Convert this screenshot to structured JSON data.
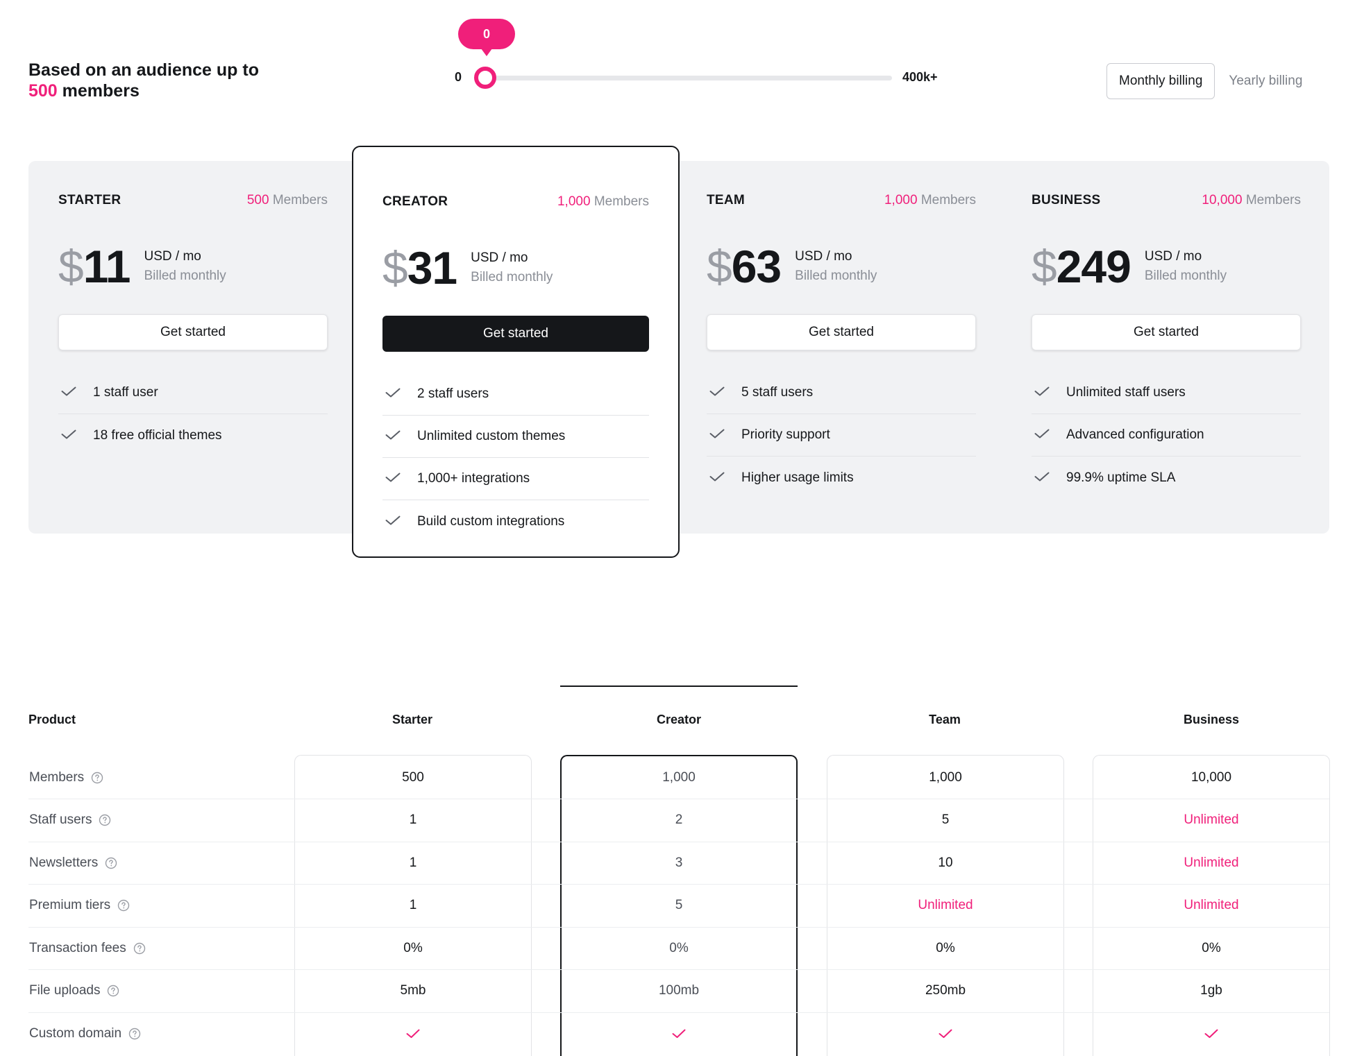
{
  "audience": {
    "prefix": "Based on an audience up to",
    "count": "500",
    "suffix": "members"
  },
  "slider": {
    "bubble": "0",
    "min_label": "0",
    "max_label": "400k+",
    "value_fraction": 0
  },
  "billing": {
    "monthly": "Monthly billing",
    "yearly": "Yearly billing"
  },
  "plans": [
    {
      "name": "STARTER",
      "members_count": "500",
      "members_label": "Members",
      "currency": "$",
      "price": "11",
      "unit": "USD / mo",
      "billed": "Billed monthly",
      "cta": "Get started",
      "features": [
        "1 staff user",
        "18 free official themes"
      ]
    },
    {
      "name": "CREATOR",
      "members_count": "1,000",
      "members_label": "Members",
      "currency": "$",
      "price": "31",
      "unit": "USD / mo",
      "billed": "Billed monthly",
      "cta": "Get started",
      "features": [
        "2 staff users",
        "Unlimited custom themes",
        "1,000+ integrations",
        "Build custom integrations"
      ]
    },
    {
      "name": "TEAM",
      "members_count": "1,000",
      "members_label": "Members",
      "currency": "$",
      "price": "63",
      "unit": "USD / mo",
      "billed": "Billed monthly",
      "cta": "Get started",
      "features": [
        "5 staff users",
        "Priority support",
        "Higher usage limits"
      ]
    },
    {
      "name": "BUSINESS",
      "members_count": "10,000",
      "members_label": "Members",
      "currency": "$",
      "price": "249",
      "unit": "USD / mo",
      "billed": "Billed monthly",
      "cta": "Get started",
      "features": [
        "Unlimited staff users",
        "Advanced configuration",
        "99.9% uptime SLA"
      ]
    }
  ],
  "table": {
    "headers": [
      "Product",
      "Starter",
      "Creator",
      "Team",
      "Business"
    ],
    "rows": [
      {
        "label": "Members",
        "values": [
          "500",
          "1,000",
          "1,000",
          "10,000"
        ]
      },
      {
        "label": "Staff users",
        "values": [
          "1",
          "2",
          "5",
          "Unlimited"
        ]
      },
      {
        "label": "Newsletters",
        "values": [
          "1",
          "3",
          "10",
          "Unlimited"
        ]
      },
      {
        "label": "Premium tiers",
        "values": [
          "1",
          "5",
          "Unlimited",
          "Unlimited"
        ]
      },
      {
        "label": "Transaction fees",
        "values": [
          "0%",
          "0%",
          "0%",
          "0%"
        ]
      },
      {
        "label": "File uploads",
        "values": [
          "5mb",
          "100mb",
          "250mb",
          "1gb"
        ]
      },
      {
        "label": "Custom domain",
        "values": [
          "check-icon",
          "check-icon",
          "check-icon",
          "check-icon"
        ]
      }
    ]
  },
  "colors": {
    "accent": "#f01f7a",
    "dark": "#15171a",
    "panel": "#f1f2f4"
  }
}
